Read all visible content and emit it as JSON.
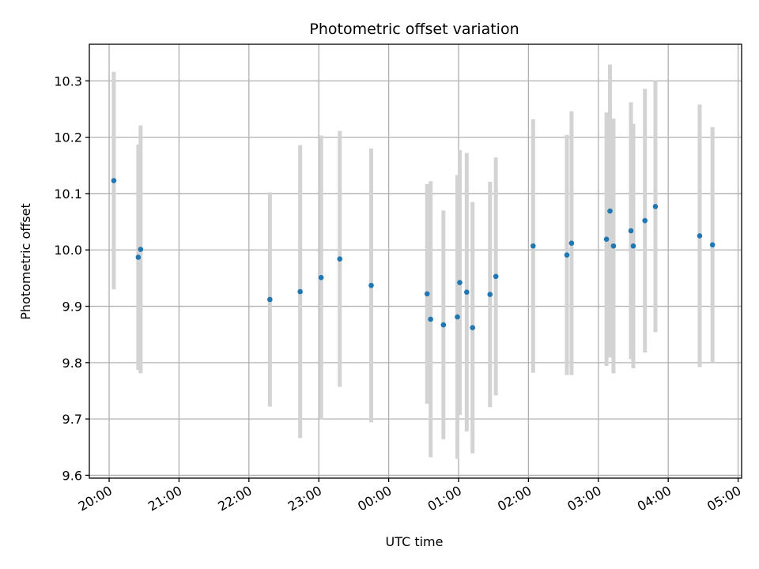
{
  "chart_data": {
    "type": "scatter",
    "title": "Photometric offset variation",
    "xlabel": "UTC time",
    "ylabel": "Photometric offset",
    "x_is_time": true,
    "x_range": [
      "19:43",
      "05:03"
    ],
    "ylim": [
      9.595,
      10.365
    ],
    "grid": true,
    "legend": "none",
    "x_ticks": [
      "20:00",
      "21:00",
      "22:00",
      "23:00",
      "00:00",
      "01:00",
      "02:00",
      "03:00",
      "04:00",
      "05:00"
    ],
    "y_ticks": [
      9.6,
      9.7,
      9.8,
      9.9,
      10.0,
      10.1,
      10.2,
      10.3
    ],
    "y_tick_labels": [
      "9.6",
      "9.7",
      "9.8",
      "9.9",
      "10.0",
      "10.1",
      "10.2",
      "10.3"
    ],
    "colors": {
      "point": "#1f77b4",
      "errorbar": "#d3d3d3",
      "grid": "#b0b0b0"
    },
    "points": [
      {
        "x": "20:04",
        "y": 10.123,
        "err": 0.193
      },
      {
        "x": "20:25",
        "y": 9.987,
        "err": 0.2
      },
      {
        "x": "20:27",
        "y": 10.001,
        "err": 0.22
      },
      {
        "x": "22:18",
        "y": 9.912,
        "err": 0.19
      },
      {
        "x": "22:44",
        "y": 9.926,
        "err": 0.26
      },
      {
        "x": "23:02",
        "y": 9.951,
        "err": 0.252
      },
      {
        "x": "23:18",
        "y": 9.984,
        "err": 0.227
      },
      {
        "x": "23:45",
        "y": 9.937,
        "err": 0.243
      },
      {
        "x": "00:33",
        "y": 9.922,
        "err": 0.195
      },
      {
        "x": "00:36",
        "y": 9.877,
        "err": 0.245
      },
      {
        "x": "00:47",
        "y": 9.867,
        "err": 0.203
      },
      {
        "x": "00:59",
        "y": 9.881,
        "err": 0.252
      },
      {
        "x": "01:01",
        "y": 9.942,
        "err": 0.235
      },
      {
        "x": "01:07",
        "y": 9.925,
        "err": 0.247
      },
      {
        "x": "01:12",
        "y": 9.862,
        "err": 0.223
      },
      {
        "x": "01:27",
        "y": 9.921,
        "err": 0.2
      },
      {
        "x": "01:32",
        "y": 9.953,
        "err": 0.211
      },
      {
        "x": "02:04",
        "y": 10.007,
        "err": 0.225
      },
      {
        "x": "02:33",
        "y": 9.991,
        "err": 0.213
      },
      {
        "x": "02:37",
        "y": 10.012,
        "err": 0.234
      },
      {
        "x": "03:07",
        "y": 10.019,
        "err": 0.225
      },
      {
        "x": "03:10",
        "y": 10.069,
        "err": 0.26
      },
      {
        "x": "03:13",
        "y": 10.007,
        "err": 0.226
      },
      {
        "x": "03:28",
        "y": 10.034,
        "err": 0.228
      },
      {
        "x": "03:30",
        "y": 10.007,
        "err": 0.217
      },
      {
        "x": "03:40",
        "y": 10.052,
        "err": 0.234
      },
      {
        "x": "03:49",
        "y": 10.077,
        "err": 0.223
      },
      {
        "x": "04:27",
        "y": 10.025,
        "err": 0.233
      },
      {
        "x": "04:38",
        "y": 10.009,
        "err": 0.209
      }
    ]
  }
}
